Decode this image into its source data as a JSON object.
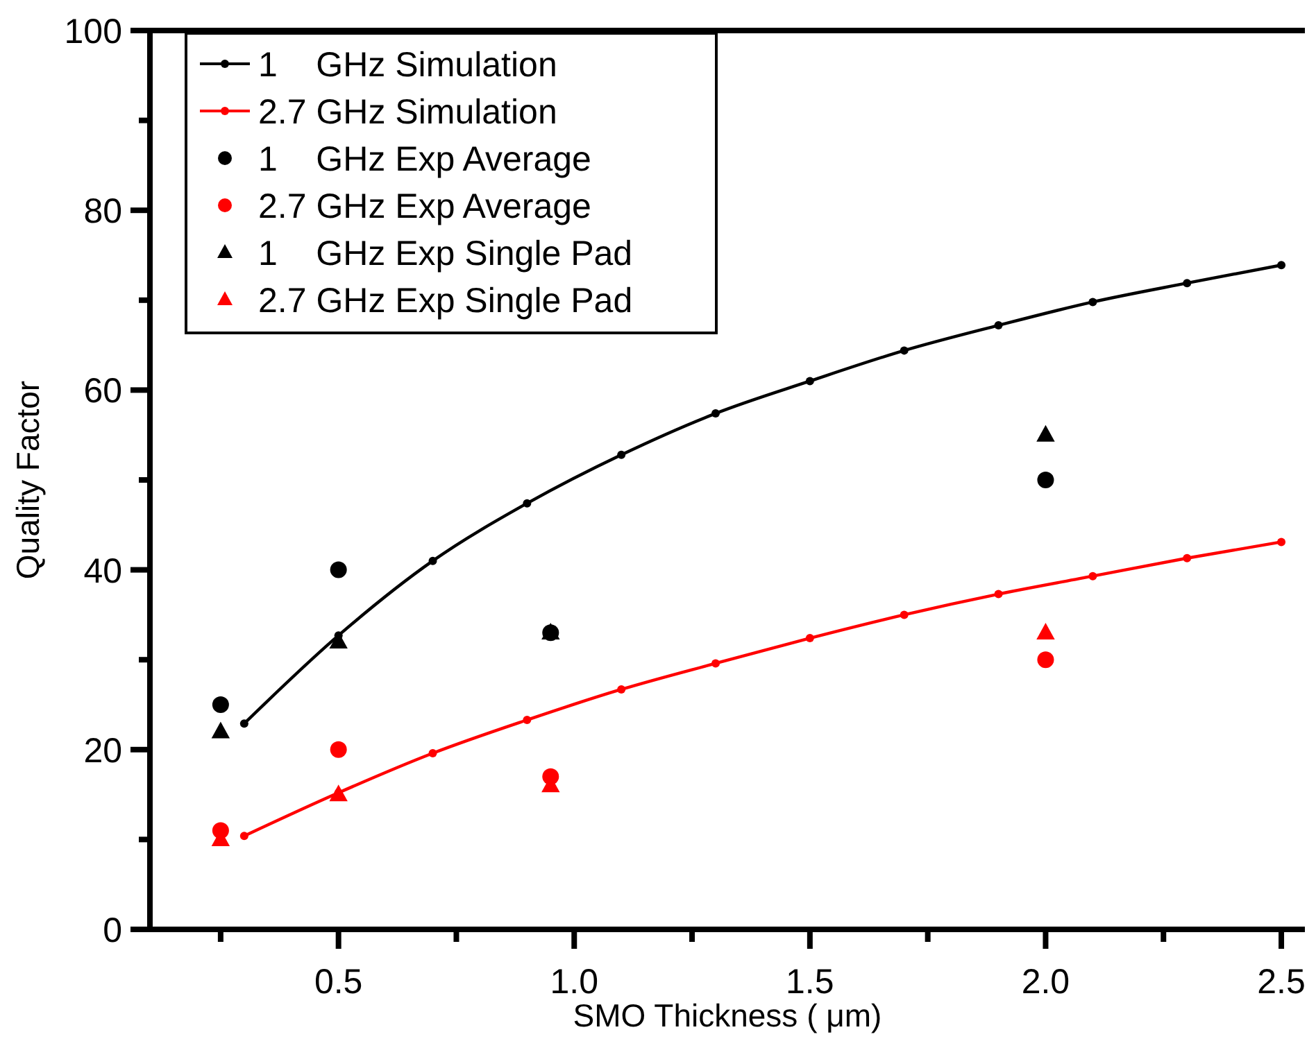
{
  "chart_data": {
    "type": "line",
    "xlabel": "SMO Thickness ( μm)",
    "ylabel": "Quality Factor",
    "xlim": [
      0.1,
      2.55
    ],
    "xticks": [
      {
        "value": 0.25,
        "label": null
      },
      0.5,
      {
        "value": 0.75,
        "label": null
      },
      {
        "value": 1,
        "label": "1.0"
      },
      {
        "value": 1.25,
        "label": null
      },
      1.5,
      {
        "value": 1.75,
        "label": null
      },
      {
        "value": 2,
        "label": "2.0"
      },
      {
        "value": 2.25,
        "label": null
      },
      2.5
    ],
    "ylim": [
      0,
      100
    ],
    "yticks": [
      0,
      {
        "value": 10,
        "label": null
      },
      20,
      {
        "value": 30,
        "label": null
      },
      40,
      {
        "value": 50,
        "label": null
      },
      60,
      {
        "value": 70,
        "label": null
      },
      80,
      {
        "value": 90,
        "label": null
      },
      100
    ],
    "grid": false,
    "legend": "top left",
    "series": [
      {
        "name": "1    GHz Simulation",
        "marker": "circle",
        "color": "#000000",
        "x": [
          0.3,
          0.5,
          0.7,
          0.9,
          1.1,
          1.3,
          1.5,
          1.7,
          1.9,
          2.1,
          2.3,
          2.5
        ],
        "values": [
          22.9,
          32.7,
          41,
          47.4,
          52.8,
          57.4,
          61,
          64.4,
          67.2,
          69.8,
          71.9,
          73.9
        ]
      },
      {
        "name": "2.7 GHz Simulation",
        "marker": "circle",
        "color": "#ff0000",
        "x": [
          0.3,
          0.5,
          0.7,
          0.9,
          1.1,
          1.3,
          1.5,
          1.7,
          1.9,
          2.1,
          2.3,
          2.5
        ],
        "values": [
          10.4,
          15.2,
          19.6,
          23.3,
          26.7,
          29.6,
          32.4,
          35,
          37.3,
          39.3,
          41.3,
          43.1
        ]
      },
      {
        "name": "1    GHz Exp Average",
        "type": "scatter",
        "marker": "circle",
        "color": "#000000",
        "x": [
          0.25,
          0.5,
          0.95,
          2.0
        ],
        "values": [
          25,
          40,
          33,
          50
        ]
      },
      {
        "name": "2.7 GHz Exp Average",
        "type": "scatter",
        "marker": "circle",
        "color": "#ff0000",
        "x": [
          0.25,
          0.5,
          0.95,
          2.0
        ],
        "values": [
          11,
          20,
          17,
          30
        ]
      },
      {
        "name": "1    GHz Exp Single Pad",
        "type": "scatter",
        "marker": "triangle",
        "color": "#000000",
        "x": [
          0.25,
          0.5,
          0.95,
          2.0
        ],
        "values": [
          22,
          32,
          33,
          55
        ]
      },
      {
        "name": "2.7 GHz Exp Single Pad",
        "type": "scatter",
        "marker": "triangle",
        "color": "#ff0000",
        "x": [
          0.25,
          0.5,
          0.95,
          2.0
        ],
        "values": [
          10,
          15,
          16,
          33
        ]
      }
    ]
  }
}
